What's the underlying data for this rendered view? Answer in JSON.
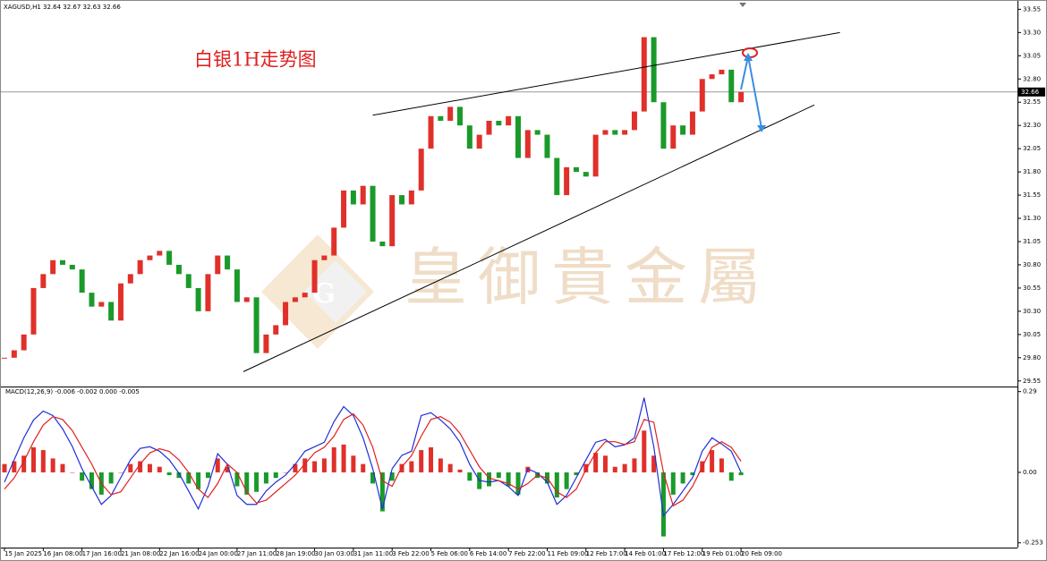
{
  "chart_data": [
    {
      "type": "candlestick",
      "header": "XAGUSD,H1  32.64 32.67 32.63 32.66",
      "title": "白银1H走势图",
      "watermark": "皇御貴金屬",
      "categories": [
        "15 Jan 2025",
        null,
        null,
        null,
        "16 Jan 08:00",
        null,
        null,
        null,
        "17 Jan 16:00",
        null,
        null,
        null,
        "21 Jan 08:00",
        null,
        null,
        null,
        "22 Jan 16:00",
        null,
        null,
        null,
        "24 Jan 00:00",
        null,
        null,
        null,
        "27 Jan 11:00",
        null,
        null,
        null,
        "28 Jan 19:00",
        null,
        null,
        null,
        "30 Jan 03:00",
        null,
        null,
        null,
        "31 Jan 11:00",
        null,
        null,
        null,
        "3 Feb 22:00",
        null,
        null,
        null,
        "5 Feb 06:00",
        null,
        null,
        null,
        "6 Feb 14:00",
        null,
        null,
        null,
        "7 Feb 22:00",
        null,
        null,
        null,
        "11 Feb 09:00",
        null,
        null,
        null,
        "12 Feb 17:00",
        null,
        null,
        null,
        "14 Feb 01:00",
        null,
        null,
        null,
        "17 Feb 12:00",
        null,
        null,
        null,
        "19 Feb 01:00",
        null,
        null,
        null,
        "20 Feb 09:00"
      ],
      "values": [
        29.8,
        29.88,
        30.05,
        30.55,
        30.7,
        30.85,
        30.8,
        30.75,
        30.5,
        30.35,
        30.4,
        30.2,
        30.6,
        30.7,
        30.85,
        30.9,
        30.95,
        30.8,
        30.7,
        30.55,
        30.3,
        30.7,
        30.9,
        30.75,
        30.4,
        30.45,
        29.85,
        30.05,
        30.15,
        30.4,
        30.45,
        30.5,
        30.85,
        30.9,
        31.2,
        31.6,
        31.45,
        31.65,
        31.05,
        31.0,
        31.55,
        31.45,
        31.6,
        32.05,
        32.4,
        32.35,
        32.5,
        32.3,
        32.05,
        32.2,
        32.35,
        32.3,
        32.4,
        31.95,
        32.25,
        32.2,
        31.95,
        31.55,
        31.85,
        31.8,
        31.75,
        32.2,
        32.25,
        32.2,
        32.25,
        32.45,
        33.25,
        32.55,
        32.05,
        32.3,
        32.2,
        32.45,
        32.8,
        32.85,
        32.9,
        32.55,
        32.66
      ],
      "up_color": "#e0302a",
      "down_color": "#1a9a2a",
      "ylim": [
        29.49,
        33.65
      ],
      "yticks": [
        29.55,
        {
          "value": 29.8,
          "label": "29.80"
        },
        30.05,
        {
          "value": 30.3,
          "label": "30.30"
        },
        30.55,
        {
          "value": 30.8,
          "label": "30.80"
        },
        31.05,
        {
          "value": 31.3,
          "label": "31.30"
        },
        31.55,
        {
          "value": 31.8,
          "label": "31.80"
        },
        32.05,
        {
          "value": 32.3,
          "label": "32.30"
        },
        32.55,
        {
          "value": 32.8,
          "label": "32.80"
        },
        33.05,
        {
          "value": 33.3,
          "label": "33.30"
        },
        33.55
      ],
      "current_price": 32.66,
      "trendlines": [
        {
          "x": [
            38.0,
            86.2
          ],
          "y": [
            32.41,
            33.3
          ]
        },
        {
          "x": [
            24.65,
            83.56
          ],
          "y": [
            29.65,
            32.52
          ]
        }
      ]
    },
    {
      "type": "macd",
      "title": "MACD(12,26,9) -0.006 -0.002 0.000 -0.005",
      "histogram": [
        0.03,
        0.04,
        0.06,
        0.09,
        0.08,
        0.05,
        0.03,
        0.0,
        -0.03,
        -0.06,
        -0.08,
        -0.04,
        0.0,
        0.03,
        0.04,
        0.03,
        0.02,
        -0.01,
        -0.02,
        -0.04,
        -0.06,
        -0.02,
        0.05,
        0.02,
        -0.05,
        -0.08,
        -0.07,
        -0.04,
        -0.02,
        0.0,
        0.03,
        0.05,
        0.04,
        0.05,
        0.09,
        0.1,
        0.06,
        0.03,
        -0.04,
        -0.14,
        -0.03,
        0.03,
        0.04,
        0.08,
        0.09,
        0.05,
        0.03,
        0.01,
        -0.03,
        -0.06,
        -0.05,
        -0.02,
        -0.05,
        -0.08,
        0.02,
        -0.02,
        -0.04,
        -0.09,
        -0.06,
        -0.01,
        0.03,
        0.07,
        0.06,
        0.02,
        0.03,
        0.05,
        0.15,
        0.06,
        -0.23,
        -0.08,
        -0.04,
        -0.01,
        0.04,
        0.08,
        0.05,
        -0.03,
        -0.01
      ],
      "macd_line": {
        "color": "#1f2fd8",
        "values": [
          -0.035,
          0.045,
          0.124,
          0.188,
          0.22,
          0.204,
          0.156,
          0.093,
          0.013,
          -0.051,
          -0.115,
          -0.083,
          -0.019,
          0.045,
          0.086,
          0.092,
          0.076,
          0.045,
          -0.003,
          -0.067,
          -0.131,
          -0.051,
          0.067,
          0.029,
          -0.083,
          -0.115,
          -0.115,
          -0.067,
          -0.035,
          -0.01,
          0.029,
          0.076,
          0.092,
          0.108,
          0.182,
          0.236,
          0.204,
          0.124,
          0.013,
          -0.131,
          0.013,
          0.061,
          0.076,
          0.204,
          0.214,
          0.188,
          0.156,
          0.108,
          0.029,
          -0.029,
          -0.035,
          -0.029,
          -0.051,
          -0.083,
          0.013,
          -0.003,
          -0.035,
          -0.115,
          -0.083,
          -0.019,
          0.045,
          0.108,
          0.118,
          0.092,
          0.099,
          0.124,
          0.268,
          0.092,
          -0.156,
          -0.115,
          -0.067,
          -0.019,
          0.076,
          0.124,
          0.102,
          0.076,
          0.0
        ]
      },
      "signal_line": {
        "color": "#e02020",
        "values": [
          -0.06,
          -0.02,
          0.04,
          0.11,
          0.17,
          0.2,
          0.19,
          0.15,
          0.09,
          0.03,
          -0.04,
          -0.08,
          -0.07,
          -0.02,
          0.03,
          0.07,
          0.085,
          0.075,
          0.045,
          0.0,
          -0.06,
          -0.09,
          -0.04,
          0.03,
          0.0,
          -0.07,
          -0.11,
          -0.1,
          -0.07,
          -0.04,
          -0.01,
          0.03,
          0.07,
          0.09,
          0.13,
          0.19,
          0.21,
          0.17,
          0.09,
          -0.03,
          -0.05,
          0.02,
          0.06,
          0.13,
          0.19,
          0.2,
          0.18,
          0.14,
          0.08,
          0.02,
          -0.02,
          -0.03,
          -0.04,
          -0.06,
          -0.04,
          -0.01,
          -0.02,
          -0.07,
          -0.09,
          -0.06,
          0.01,
          0.07,
          0.11,
          0.11,
          0.1,
          0.11,
          0.19,
          0.18,
          0.0,
          -0.12,
          -0.1,
          -0.05,
          0.02,
          0.09,
          0.11,
          0.09,
          0.04
        ]
      },
      "pos_color": "#e0302a",
      "neg_color": "#1a9a2a",
      "ylim": [
        -0.27,
        0.305
      ],
      "yticks": [
        0.29,
        {
          "value": 0.0,
          "label": "0.00"
        },
        -0.253
      ]
    }
  ]
}
